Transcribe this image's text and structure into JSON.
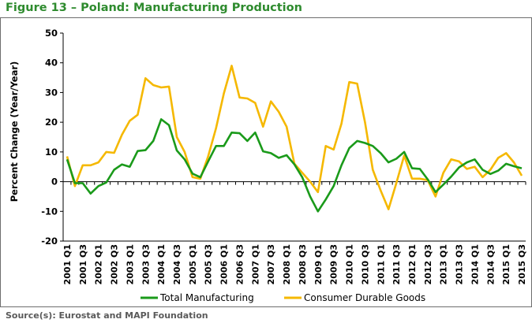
{
  "title": "Figure 13 – Poland: Manufacturing Production",
  "source": "Source(s): Eurostat and MAPI Foundation",
  "chart_data": {
    "type": "line",
    "ylabel": "Percent Change (Year/Year)",
    "ylim": [
      -20,
      50
    ],
    "yticks": [
      -20,
      -10,
      0,
      10,
      20,
      30,
      40,
      50
    ],
    "grid": false,
    "legend_position": "bottom",
    "x": [
      "2001 Q1",
      "2001 Q2",
      "2001 Q3",
      "2001 Q4",
      "2002 Q1",
      "2002 Q2",
      "2002 Q3",
      "2002 Q4",
      "2003 Q1",
      "2003 Q2",
      "2003 Q3",
      "2003 Q4",
      "2004 Q1",
      "2004 Q2",
      "2004 Q3",
      "2004 Q4",
      "2005 Q1",
      "2005 Q2",
      "2005 Q3",
      "2005 Q4",
      "2006 Q1",
      "2006 Q2",
      "2006 Q3",
      "2006 Q4",
      "2007 Q1",
      "2007 Q2",
      "2007 Q3",
      "2007 Q4",
      "2008 Q1",
      "2008 Q2",
      "2008 Q3",
      "2008 Q4",
      "2009 Q1",
      "2009 Q2",
      "2009 Q3",
      "2009 Q4",
      "2010 Q1",
      "2010 Q2",
      "2010 Q3",
      "2010 Q4",
      "2011 Q1",
      "2011 Q2",
      "2011 Q3",
      "2011 Q4",
      "2012 Q1",
      "2012 Q2",
      "2012 Q3",
      "2012 Q4",
      "2013 Q1",
      "2013 Q2",
      "2013 Q3",
      "2013 Q4",
      "2014 Q1",
      "2014 Q2",
      "2014 Q3",
      "2014 Q4",
      "2015 Q1",
      "2015 Q2",
      "2015 Q3"
    ],
    "xticklabels": [
      "2001 Q1",
      "2001 Q3",
      "2002 Q1",
      "2002 Q3",
      "2003 Q1",
      "2003 Q3",
      "2004 Q1",
      "2004 Q3",
      "2005 Q1",
      "2005 Q3",
      "2006 Q1",
      "2006 Q3",
      "2007 Q1",
      "2007 Q3",
      "2008 Q1",
      "2008 Q3",
      "2009 Q1",
      "2009 Q3",
      "2010 Q1",
      "2010 Q3",
      "2011 Q1",
      "2011 Q3",
      "2012 Q1",
      "2012 Q3",
      "2013 Q1",
      "2013 Q3",
      "2014 Q1",
      "2014 Q3",
      "2015 Q1",
      "2015 Q3"
    ],
    "series": [
      {
        "name": "Total Manufacturing",
        "color": "#1a9a1a",
        "values": [
          7.5,
          -0.5,
          -0.5,
          -4,
          -1.5,
          -0.3,
          4,
          5.8,
          5,
          10.3,
          10.6,
          13.7,
          21,
          19,
          10.5,
          7.5,
          2.7,
          1.5,
          6.8,
          12,
          12,
          16.5,
          16.3,
          13.7,
          16.5,
          10.2,
          9.6,
          8,
          8.9,
          5.8,
          1.5,
          -5,
          -10,
          -6,
          -1.5,
          5.5,
          11.3,
          13.7,
          13,
          12,
          9.6,
          6.5,
          7.7,
          10,
          4.5,
          4.3,
          0.8,
          -3.5,
          -1,
          1.7,
          4.8,
          6.5,
          7.5,
          4,
          2.6,
          3.7,
          6,
          5.2,
          4.5
        ]
      },
      {
        "name": "Consumer Durable Goods",
        "color": "#f5b800",
        "values": [
          8.5,
          -1.5,
          5.5,
          5.5,
          6.5,
          10,
          9.7,
          15.8,
          20.5,
          22.5,
          34.8,
          32.5,
          31.7,
          32,
          15,
          10,
          1.5,
          1,
          8.5,
          18,
          29.7,
          39,
          28.3,
          28,
          26.5,
          18.5,
          27,
          23.5,
          18.5,
          6,
          3,
          0,
          -3.5,
          12,
          10.8,
          19.5,
          33.5,
          33,
          20,
          4,
          -3,
          -9.3,
          -0.5,
          8.8,
          1,
          1,
          0.5,
          -5,
          3,
          7.5,
          6.8,
          4.3,
          5,
          1.5,
          4,
          8,
          9.6,
          6.5,
          2
        ]
      }
    ]
  }
}
